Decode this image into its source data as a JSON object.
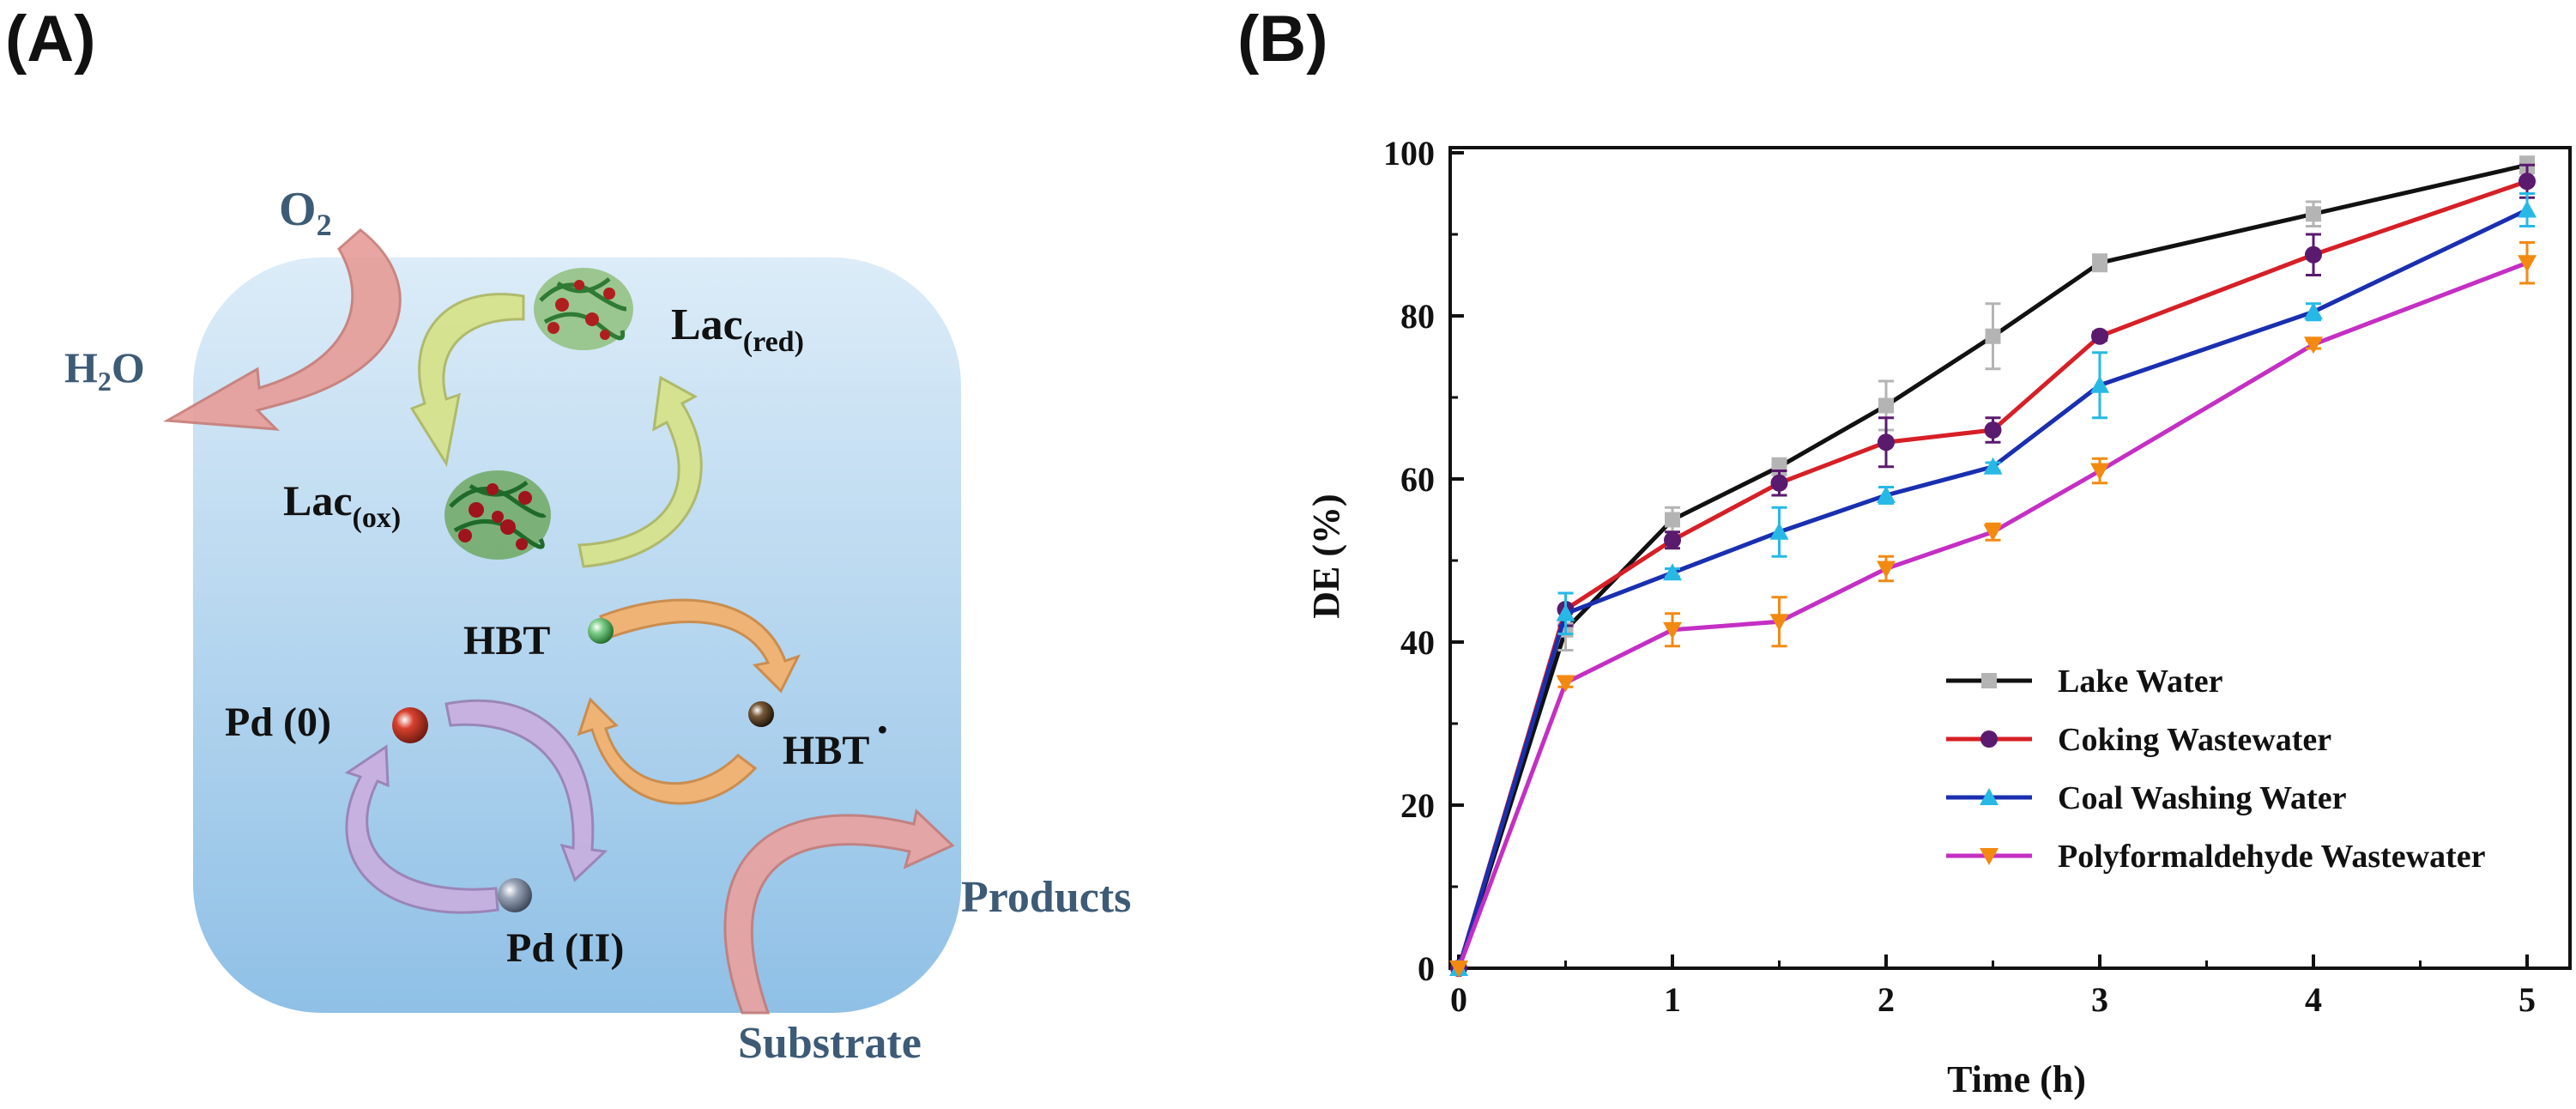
{
  "panels": {
    "a_label": "(A)",
    "b_label": "(B)"
  },
  "diagram": {
    "o2": "O",
    "o2_sub": "2",
    "h2o_h": "H",
    "h2o_sub": "2",
    "h2o_o": "O",
    "lac_red": "Lac",
    "lac_red_sub": "(red)",
    "lac_ox": "Lac",
    "lac_ox_sub": "(ox)",
    "hbt": "HBT",
    "hbt_radical": "HBT",
    "radical_dot": "·",
    "pd0": "Pd (0)",
    "pd2": "Pd (II)",
    "products": "Products",
    "substrate": "Substrate",
    "colors": {
      "background_top": "#dcecf8",
      "background_bottom": "#8fc0e6",
      "o2_arrow": "#e79c97",
      "lac_arrow": "#d6e38c",
      "hbt_arrow": "#f2b26f",
      "pd_arrow": "#c8b0e0",
      "substrate_arrow": "#e9a2a0",
      "label_blue": "#3d5b76",
      "pd0_sphere": "#d8402e",
      "pd2_sphere": "#9aa6b8",
      "hbt_sphere": "#7fcf8a",
      "hbt_radical_sphere": "#7a5a3a"
    }
  },
  "chart_data": {
    "type": "line",
    "title": "",
    "xlabel": "Time (h)",
    "ylabel": "DE (%)",
    "xlim": [
      0,
      5
    ],
    "ylim": [
      0,
      100
    ],
    "xticks": [
      "0",
      "1",
      "2",
      "3",
      "4",
      "5"
    ],
    "yticks": [
      "0",
      "20",
      "40",
      "60",
      "80",
      "100"
    ],
    "x": [
      0,
      0.5,
      1,
      1.5,
      2,
      2.5,
      3,
      4,
      5
    ],
    "legend_position": "lower-right",
    "series": [
      {
        "name": "Lake Water",
        "color": "#111111",
        "marker_color": "#b4b4b4",
        "marker": "square",
        "values": [
          0,
          41.5,
          55,
          61.5,
          69,
          77.5,
          86.5,
          92.5,
          98.5
        ],
        "errors": [
          0,
          2.5,
          1.5,
          1,
          3,
          4,
          1,
          1.5,
          1
        ]
      },
      {
        "name": "Coking Wastewater",
        "color": "#d61f26",
        "marker_color": "#5a1a6e",
        "marker": "circle",
        "values": [
          0,
          44,
          52.5,
          59.5,
          64.5,
          66,
          77.5,
          87.5,
          96.5
        ],
        "errors": [
          0,
          2,
          1,
          1.5,
          3,
          1.5,
          0.5,
          2.5,
          2
        ]
      },
      {
        "name": "Coal Washing Water",
        "color": "#1a2fb0",
        "marker_color": "#27b8e6",
        "marker": "triangle-up",
        "values": [
          0,
          43.5,
          48.5,
          53.5,
          58,
          61.5,
          71.5,
          80.5,
          93
        ],
        "errors": [
          0,
          2.5,
          0.5,
          3,
          1,
          0.5,
          4,
          1,
          2
        ]
      },
      {
        "name": "Polyformaldehyde Wastewater",
        "color": "#c42fc4",
        "marker_color": "#f28a12",
        "marker": "triangle-down",
        "values": [
          0,
          35,
          41.5,
          42.5,
          49,
          53.5,
          61,
          76.5,
          86.5
        ],
        "errors": [
          0,
          0.5,
          2,
          3,
          1.5,
          1,
          1.5,
          0.5,
          2.5
        ]
      }
    ]
  }
}
